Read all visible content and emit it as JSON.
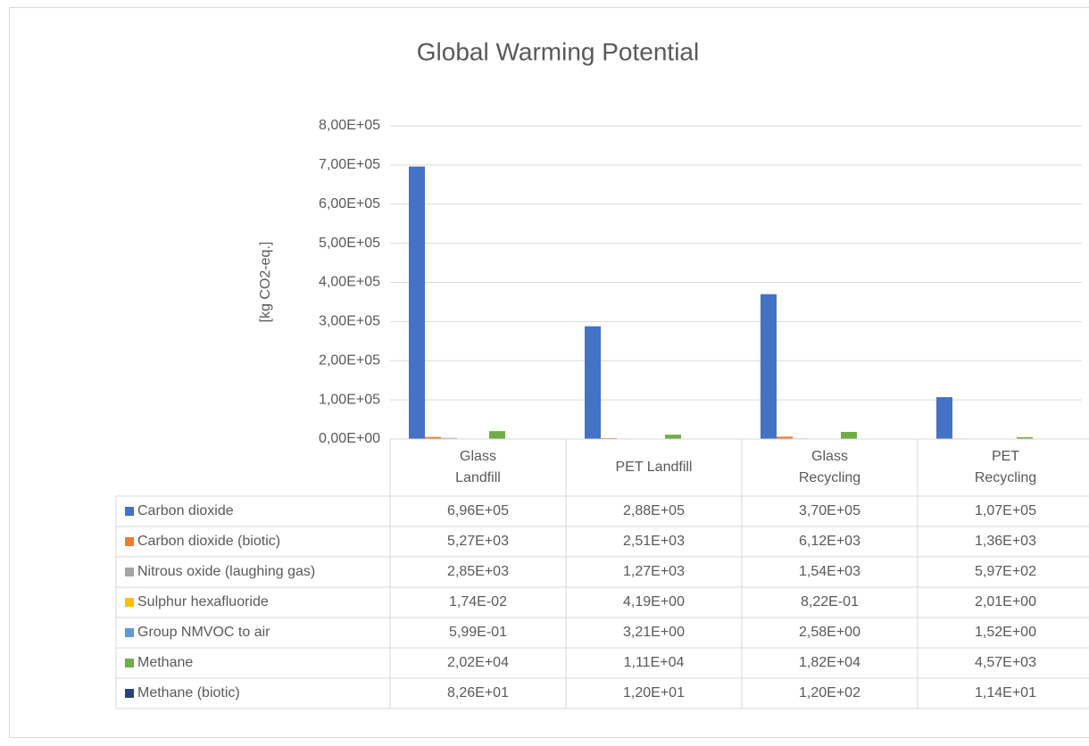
{
  "chart_data": {
    "type": "bar",
    "title": "Global Warming Potential",
    "y_label": "[kg CO2-eq.]",
    "categories": [
      "Glass Landfill",
      "PET Landfill",
      "Glass Recycling",
      "PET Recycling"
    ],
    "series": [
      {
        "name": "Carbon dioxide",
        "color": "#4472c4",
        "values": [
          696000,
          288000,
          370000,
          107000
        ],
        "value_labels": [
          "6,96E+05",
          "2,88E+05",
          "3,70E+05",
          "1,07E+05"
        ]
      },
      {
        "name": "Carbon dioxide (biotic)",
        "color": "#ed7d31",
        "values": [
          5270,
          2510,
          6120,
          1360
        ],
        "value_labels": [
          "5,27E+03",
          "2,51E+03",
          "6,12E+03",
          "1,36E+03"
        ]
      },
      {
        "name": "Nitrous oxide (laughing gas)",
        "color": "#a5a5a5",
        "values": [
          2850,
          1270,
          1540,
          597
        ],
        "value_labels": [
          "2,85E+03",
          "1,27E+03",
          "1,54E+03",
          "5,97E+02"
        ]
      },
      {
        "name": "Sulphur hexafluoride",
        "color": "#ffc000",
        "values": [
          0.0174,
          4.19,
          0.822,
          2.01
        ],
        "value_labels": [
          "1,74E-02",
          "4,19E+00",
          "8,22E-01",
          "2,01E+00"
        ]
      },
      {
        "name": "Group NMVOC to air",
        "color": "#5b9bd5",
        "values": [
          0.599,
          3.21,
          2.58,
          1.52
        ],
        "value_labels": [
          "5,99E-01",
          "3,21E+00",
          "2,58E+00",
          "1,52E+00"
        ]
      },
      {
        "name": "Methane",
        "color": "#70ad47",
        "values": [
          20200,
          11100,
          18200,
          4570
        ],
        "value_labels": [
          "2,02E+04",
          "1,11E+04",
          "1,82E+04",
          "4,57E+03"
        ]
      },
      {
        "name": "Methane (biotic)",
        "color": "#264478",
        "values": [
          82.6,
          12.0,
          120,
          11.4
        ],
        "value_labels": [
          "8,26E+01",
          "1,20E+01",
          "1,20E+02",
          "1,14E+01"
        ]
      }
    ],
    "ylim": [
      0,
      800000
    ],
    "yticks": [
      {
        "value": 0,
        "label": "0,00E+00"
      },
      {
        "value": 100000,
        "label": "1,00E+05"
      },
      {
        "value": 200000,
        "label": "2,00E+05"
      },
      {
        "value": 300000,
        "label": "3,00E+05"
      },
      {
        "value": 400000,
        "label": "4,00E+05"
      },
      {
        "value": 500000,
        "label": "5,00E+05"
      },
      {
        "value": 600000,
        "label": "6,00E+05"
      },
      {
        "value": 700000,
        "label": "7,00E+05"
      },
      {
        "value": 800000,
        "label": "8,00E+05"
      }
    ],
    "grid": true
  }
}
